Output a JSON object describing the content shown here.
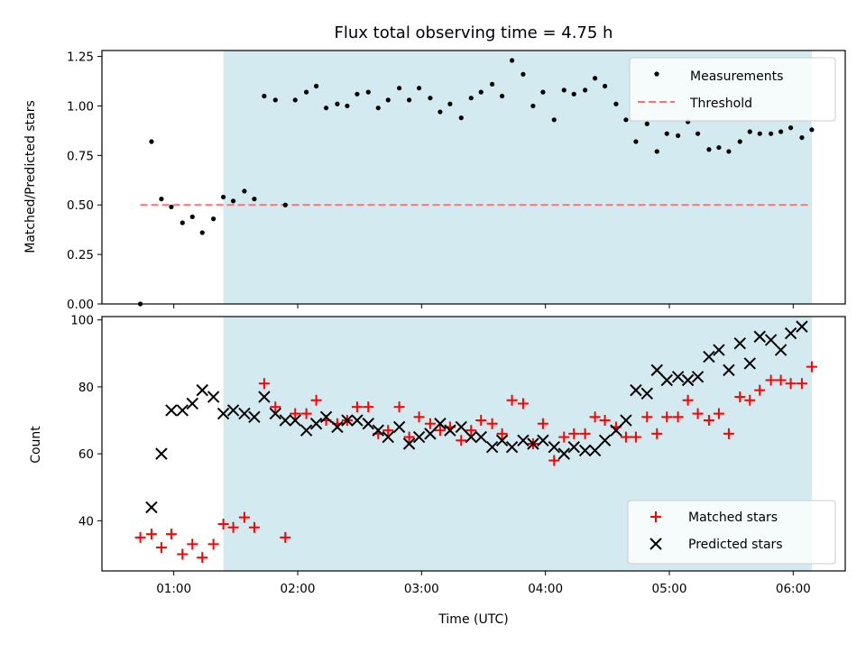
{
  "chart_data": [
    {
      "type": "scatter",
      "title": "Flux total observing time = 4.75 h",
      "xlabel": "",
      "ylabel": "Matched/Predicted stars",
      "ylim": [
        0,
        1.28
      ],
      "yticks": [
        0,
        0.25,
        0.5,
        0.75,
        1.0,
        1.25
      ],
      "ytick_labels": [
        "0.00",
        "0.25",
        "0.50",
        "0.75",
        "1.00",
        "1.25"
      ],
      "xlim_hours": [
        0.42,
        6.42
      ],
      "shaded_region_hours": [
        1.4,
        6.15
      ],
      "shade_color": "#d3eaf0",
      "grid": false,
      "legend_position": "top-right",
      "legend": [
        {
          "label": "Measurements",
          "marker": "dot",
          "color": "#000000"
        },
        {
          "label": "Threshold",
          "marker": "dashed-line",
          "color": "#ff7070"
        }
      ],
      "threshold": {
        "y": 0.5,
        "x_start": 0.73,
        "x_end": 6.15
      },
      "series": [
        {
          "name": "Measurements",
          "x": [
            0.73,
            0.82,
            0.9,
            0.98,
            1.07,
            1.15,
            1.23,
            1.32,
            1.4,
            1.48,
            1.57,
            1.65,
            1.73,
            1.82,
            1.9,
            1.98,
            2.07,
            2.15,
            2.23,
            2.32,
            2.4,
            2.48,
            2.57,
            2.65,
            2.73,
            2.82,
            2.9,
            2.98,
            3.07,
            3.15,
            3.23,
            3.32,
            3.4,
            3.48,
            3.57,
            3.65,
            3.73,
            3.82,
            3.9,
            3.98,
            4.07,
            4.15,
            4.23,
            4.32,
            4.4,
            4.48,
            4.57,
            4.65,
            4.73,
            4.82,
            4.9,
            4.98,
            5.07,
            5.15,
            5.23,
            5.32,
            5.4,
            5.48,
            5.57,
            5.65,
            5.73,
            5.82,
            5.9,
            5.98,
            6.07,
            6.15
          ],
          "y": [
            0.0,
            0.82,
            0.53,
            0.49,
            0.41,
            0.44,
            0.36,
            0.43,
            0.54,
            0.52,
            0.57,
            0.53,
            1.05,
            1.03,
            0.5,
            1.03,
            1.07,
            1.1,
            0.99,
            1.01,
            1.0,
            1.06,
            1.07,
            0.99,
            1.03,
            1.09,
            1.03,
            1.09,
            1.04,
            0.97,
            1.01,
            0.94,
            1.04,
            1.07,
            1.11,
            1.05,
            1.23,
            1.16,
            1.0,
            1.07,
            0.93,
            1.08,
            1.06,
            1.08,
            1.14,
            1.1,
            1.01,
            0.93,
            0.82,
            0.91,
            0.77,
            0.86,
            0.85,
            0.92,
            0.86,
            0.78,
            0.79,
            0.77,
            0.82,
            0.87,
            0.86,
            0.86,
            0.87,
            0.89,
            0.84,
            0.88
          ]
        }
      ]
    },
    {
      "type": "scatter",
      "title": "",
      "xlabel": "Time (UTC)",
      "ylabel": "Count",
      "ylim": [
        25,
        101
      ],
      "yticks": [
        40,
        60,
        80,
        100
      ],
      "ytick_labels": [
        "40",
        "60",
        "80",
        "100"
      ],
      "xlim_hours": [
        0.42,
        6.42
      ],
      "xticks_hours": [
        1,
        2,
        3,
        4,
        5,
        6
      ],
      "xtick_labels": [
        "01:00",
        "02:00",
        "03:00",
        "04:00",
        "05:00",
        "06:00"
      ],
      "shaded_region_hours": [
        1.4,
        6.15
      ],
      "shade_color": "#d3eaf0",
      "grid": false,
      "legend_position": "bottom-right",
      "legend": [
        {
          "label": "Matched stars",
          "marker": "plus",
          "color": "#ff0000"
        },
        {
          "label": "Predicted stars",
          "marker": "x",
          "color": "#000000"
        }
      ],
      "series": [
        {
          "name": "Matched stars",
          "marker": "plus",
          "color": "#ff0000",
          "x": [
            0.73,
            0.82,
            0.9,
            0.98,
            1.07,
            1.15,
            1.23,
            1.32,
            1.4,
            1.48,
            1.57,
            1.65,
            1.73,
            1.82,
            1.9,
            1.98,
            2.07,
            2.15,
            2.23,
            2.32,
            2.4,
            2.48,
            2.57,
            2.65,
            2.73,
            2.82,
            2.9,
            2.98,
            3.07,
            3.15,
            3.23,
            3.32,
            3.4,
            3.48,
            3.57,
            3.65,
            3.73,
            3.82,
            3.9,
            3.98,
            4.07,
            4.15,
            4.23,
            4.32,
            4.4,
            4.48,
            4.57,
            4.65,
            4.73,
            4.82,
            4.9,
            4.98,
            5.07,
            5.15,
            5.23,
            5.32,
            5.4,
            5.48,
            5.57,
            5.65,
            5.73,
            5.82,
            5.9,
            5.98,
            6.07,
            6.15
          ],
          "y": [
            35,
            36,
            32,
            36,
            30,
            33,
            29,
            33,
            39,
            38,
            41,
            38,
            81,
            74,
            35,
            72,
            72,
            76,
            70,
            69,
            70,
            74,
            74,
            66,
            67,
            74,
            65,
            71,
            69,
            67,
            68,
            64,
            67,
            70,
            69,
            66,
            76,
            75,
            63,
            69,
            58,
            65,
            66,
            66,
            71,
            70,
            68,
            65,
            65,
            71,
            66,
            71,
            71,
            76,
            72,
            70,
            72,
            66,
            77,
            76,
            79,
            82,
            82,
            81,
            81,
            86
          ]
        },
        {
          "name": "Predicted stars",
          "marker": "x",
          "color": "#000000",
          "x": [
            0.73,
            0.82,
            0.9,
            0.98,
            1.07,
            1.15,
            1.23,
            1.32,
            1.4,
            1.48,
            1.57,
            1.65,
            1.73,
            1.82,
            1.9,
            1.98,
            2.07,
            2.15,
            2.23,
            2.32,
            2.4,
            2.48,
            2.57,
            2.65,
            2.73,
            2.82,
            2.9,
            2.98,
            3.07,
            3.15,
            3.23,
            3.32,
            3.4,
            3.48,
            3.57,
            3.65,
            3.73,
            3.82,
            3.9,
            3.98,
            4.07,
            4.15,
            4.23,
            4.32,
            4.4,
            4.48,
            4.57,
            4.65,
            4.73,
            4.82,
            4.9,
            4.98,
            5.07,
            5.15,
            5.23,
            5.32,
            5.4,
            5.48,
            5.57,
            5.65,
            5.73,
            5.82,
            5.9,
            5.98,
            6.07,
            6.15
          ],
          "y": [
            null,
            44,
            60,
            73,
            73,
            75,
            79,
            77,
            72,
            73,
            72,
            71,
            77,
            72,
            70,
            70,
            67,
            69,
            71,
            68,
            70,
            70,
            69,
            67,
            65,
            68,
            63,
            65,
            66,
            69,
            67,
            68,
            65,
            65,
            62,
            64,
            62,
            64,
            63,
            64,
            62,
            60,
            62,
            61,
            61,
            64,
            67,
            70,
            79,
            78,
            85,
            82,
            83,
            82,
            83,
            89,
            91,
            85,
            93,
            87,
            95,
            94,
            91,
            96,
            98,
            null
          ]
        }
      ]
    }
  ]
}
